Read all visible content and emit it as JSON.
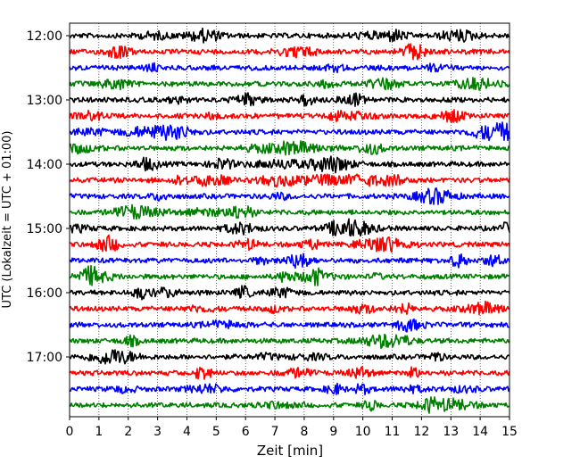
{
  "chart_data": {
    "type": "line",
    "title": "",
    "xlabel": "Zeit  [min]",
    "ylabel": "UTC (Lokalzeit = UTC + 01:00)",
    "xlim": [
      0,
      15
    ],
    "x_ticks": [
      "0",
      "1",
      "2",
      "3",
      "4",
      "5",
      "6",
      "7",
      "8",
      "9",
      "10",
      "11",
      "12",
      "13",
      "14",
      "15"
    ],
    "y_ticks": [
      "12:00",
      "13:00",
      "14:00",
      "15:00",
      "16:00",
      "17:00"
    ],
    "grid": "vertical dotted at each minute",
    "trace_colors": [
      "#000000",
      "#ff0000",
      "#0000ff",
      "#008000"
    ],
    "traces": [
      {
        "start": "12:00",
        "color": "#000000"
      },
      {
        "start": "12:15",
        "color": "#ff0000"
      },
      {
        "start": "12:30",
        "color": "#0000ff"
      },
      {
        "start": "12:45",
        "color": "#008000"
      },
      {
        "start": "13:00",
        "color": "#000000"
      },
      {
        "start": "13:15",
        "color": "#ff0000"
      },
      {
        "start": "13:30",
        "color": "#0000ff"
      },
      {
        "start": "13:45",
        "color": "#008000"
      },
      {
        "start": "14:00",
        "color": "#000000"
      },
      {
        "start": "14:15",
        "color": "#ff0000"
      },
      {
        "start": "14:30",
        "color": "#0000ff"
      },
      {
        "start": "14:45",
        "color": "#008000"
      },
      {
        "start": "15:00",
        "color": "#000000"
      },
      {
        "start": "15:15",
        "color": "#ff0000"
      },
      {
        "start": "15:30",
        "color": "#0000ff"
      },
      {
        "start": "15:45",
        "color": "#008000"
      },
      {
        "start": "16:00",
        "color": "#000000"
      },
      {
        "start": "16:15",
        "color": "#ff0000"
      },
      {
        "start": "16:30",
        "color": "#0000ff"
      },
      {
        "start": "16:45",
        "color": "#008000"
      },
      {
        "start": "17:00",
        "color": "#000000"
      },
      {
        "start": "17:15",
        "color": "#ff0000"
      },
      {
        "start": "17:30",
        "color": "#0000ff"
      },
      {
        "start": "17:45",
        "color": "#008000"
      }
    ]
  }
}
